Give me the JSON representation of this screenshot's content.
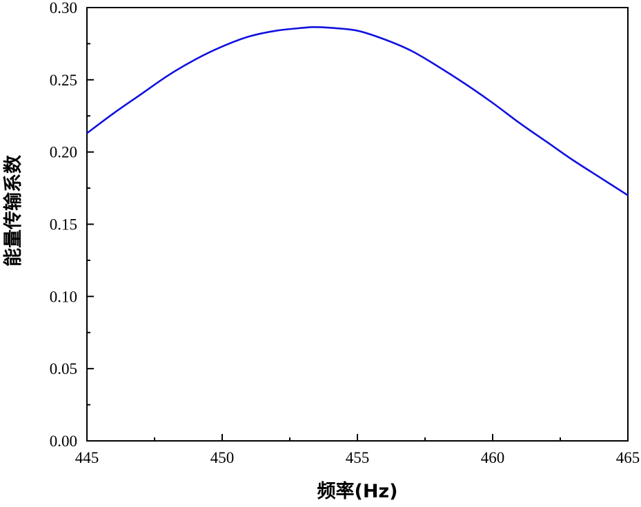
{
  "chart_data": {
    "type": "line",
    "title": "",
    "xlabel": "频率(Hz)",
    "ylabel": "能量传输系数",
    "xlim": [
      445,
      465
    ],
    "ylim": [
      0.0,
      0.3
    ],
    "x_ticks": [
      445,
      450,
      455,
      460,
      465
    ],
    "x_tick_labels": [
      "445",
      "450",
      "455",
      "460",
      "465"
    ],
    "y_ticks": [
      0.0,
      0.05,
      0.1,
      0.15,
      0.2,
      0.25,
      0.3
    ],
    "y_tick_labels": [
      "0.00",
      "0.05",
      "0.10",
      "0.15",
      "0.20",
      "0.25",
      "0.30"
    ],
    "grid": false,
    "legend": "none",
    "series": [
      {
        "color": "#1010e0",
        "x": [
          445,
          446,
          447,
          448,
          449,
          450,
          451,
          452,
          453,
          453.4,
          454,
          455,
          456,
          457,
          458,
          459,
          460,
          461,
          462,
          463,
          464,
          465
        ],
        "y": [
          0.213,
          0.227,
          0.24,
          0.253,
          0.264,
          0.273,
          0.28,
          0.284,
          0.286,
          0.2865,
          0.286,
          0.284,
          0.278,
          0.27,
          0.259,
          0.247,
          0.234,
          0.22,
          0.207,
          0.194,
          0.182,
          0.17
        ]
      }
    ]
  }
}
